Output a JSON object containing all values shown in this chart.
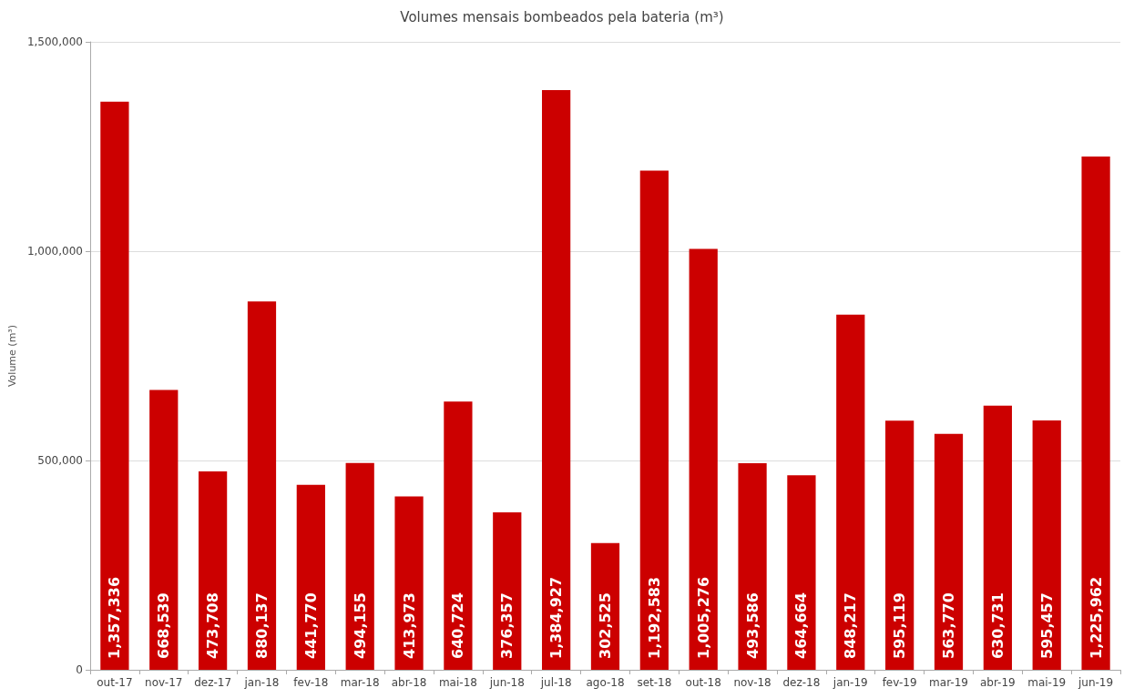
{
  "chart_data": {
    "type": "bar",
    "title": "Volumes mensais bombeados pela bateria (m³)",
    "ylabel": "Volume (m³)",
    "categories": [
      "out-17",
      "nov-17",
      "dez-17",
      "jan-18",
      "fev-18",
      "mar-18",
      "abr-18",
      "mai-18",
      "jun-18",
      "jul-18",
      "ago-18",
      "set-18",
      "out-18",
      "nov-18",
      "dez-18",
      "jan-19",
      "fev-19",
      "mar-19",
      "abr-19",
      "mai-19",
      "jun-19"
    ],
    "values": [
      1357336,
      668539,
      473708,
      880137,
      441770,
      494155,
      413973,
      640724,
      376357,
      1384927,
      302525,
      1192583,
      1005276,
      493586,
      464664,
      848217,
      595119,
      563770,
      630731,
      595457,
      1225962
    ],
    "color": "#cc0000",
    "ylim": [
      0,
      1500000
    ],
    "yticks": [
      {
        "value": 0,
        "label": "0"
      },
      {
        "value": 500000,
        "label": "500,000"
      },
      {
        "value": 1000000,
        "label": "1,000,000"
      },
      {
        "value": 1500000,
        "label": "1,500,000"
      }
    ],
    "value_labels": [
      "1,357,336",
      "668,539",
      "473,708",
      "880,137",
      "441,770",
      "494,155",
      "413,973",
      "640,724",
      "376,357",
      "1,384,927",
      "302,525",
      "1,192,583",
      "1,005,276",
      "493,586",
      "464,664",
      "848,217",
      "595,119",
      "563,770",
      "630,731",
      "595,457",
      "1,225,962"
    ],
    "grid": "y"
  }
}
